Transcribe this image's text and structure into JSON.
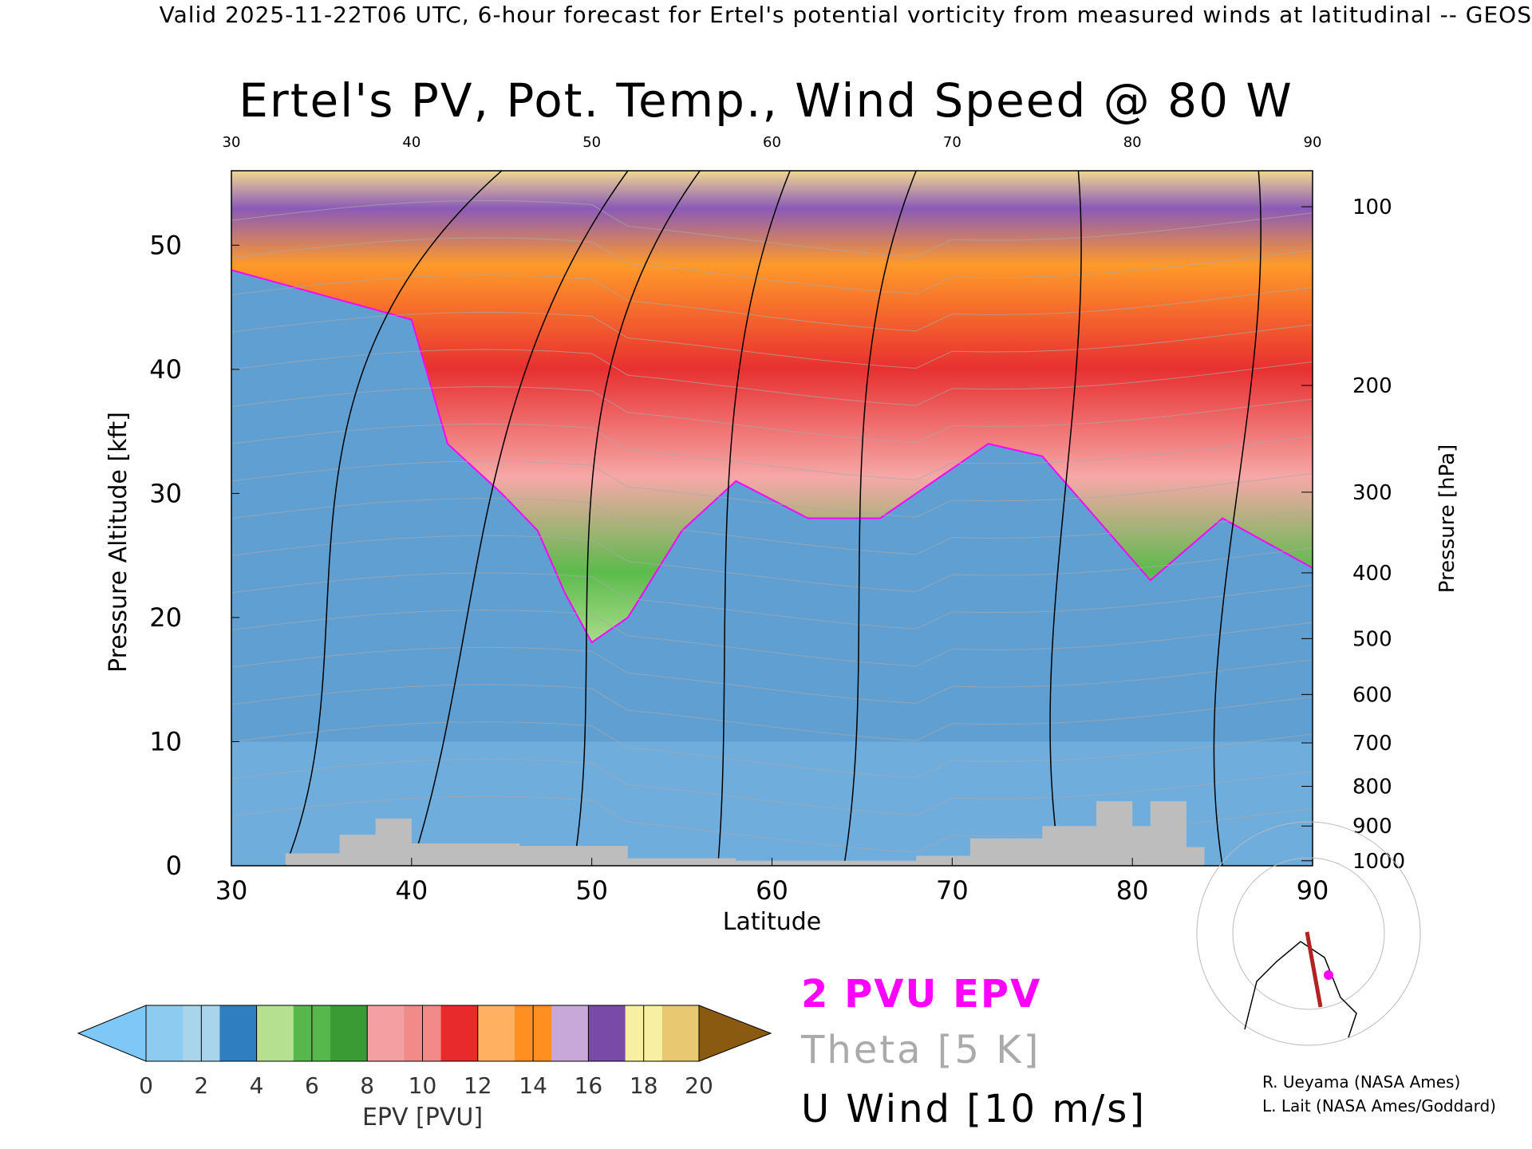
{
  "header": "Valid 2025-11-22T06 UTC, 6-hour forecast for Ertel's potential vorticity from measured winds at latitudinal -- GEOS",
  "chart_data": {
    "type": "heatmap",
    "title": "Ertel's PV, Pot. Temp., Wind Speed @ 80 W",
    "xlabel": "Latitude",
    "ylabel": "Pressure Altitude [kft]",
    "y2label": "Pressure [hPa]",
    "xlim": [
      30,
      90
    ],
    "ylim": [
      0,
      56
    ],
    "xticks": [
      30,
      40,
      50,
      60,
      70,
      80,
      90
    ],
    "yticks": [
      0,
      10,
      20,
      30,
      40,
      50
    ],
    "pressure_ticks": [
      {
        "hPa": 100,
        "kft": 53.1
      },
      {
        "hPa": 200,
        "kft": 38.7
      },
      {
        "hPa": 300,
        "kft": 30.1
      },
      {
        "hPa": 400,
        "kft": 23.6
      },
      {
        "hPa": 500,
        "kft": 18.3
      },
      {
        "hPa": 600,
        "kft": 13.8
      },
      {
        "hPa": 700,
        "kft": 9.9
      },
      {
        "hPa": 800,
        "kft": 6.4
      },
      {
        "hPa": 900,
        "kft": 3.2
      },
      {
        "hPa": 1000,
        "kft": 0.4
      }
    ],
    "colorbar": {
      "label": "EPV [PVU]",
      "ticks": [
        0,
        2,
        4,
        6,
        8,
        10,
        12,
        14,
        16,
        18,
        20
      ],
      "colors": [
        "#8ecbf0",
        "#a8d4ec",
        "#2f7fc0",
        "#b4e090",
        "#56b84a",
        "#3a9b35",
        "#f4a0a0",
        "#f28a8a",
        "#e82a2a",
        "#ffb060",
        "#ff8f20",
        "#c8a8d8",
        "#7a4aa8",
        "#f8f0a0",
        "#e8c870"
      ],
      "under_color": "#7ec8f8",
      "over_color": "#8a5a10"
    },
    "contours": {
      "pv_2pvu": {
        "label": "2 PVU EPV",
        "color": "#ff00ff"
      },
      "theta": {
        "label": "Theta [5 K]",
        "color": "#aaaaaa"
      },
      "u_wind": {
        "label": "U Wind [10 m/s]",
        "color": "#000000"
      }
    },
    "tropopause": [
      {
        "lat": 30,
        "kft": 48
      },
      {
        "lat": 35,
        "kft": 46
      },
      {
        "lat": 40,
        "kft": 44
      },
      {
        "lat": 42,
        "kft": 34
      },
      {
        "lat": 45,
        "kft": 30
      },
      {
        "lat": 47,
        "kft": 27
      },
      {
        "lat": 48.5,
        "kft": 22
      },
      {
        "lat": 50,
        "kft": 18
      },
      {
        "lat": 52,
        "kft": 20
      },
      {
        "lat": 55,
        "kft": 27
      },
      {
        "lat": 58,
        "kft": 31
      },
      {
        "lat": 62,
        "kft": 28
      },
      {
        "lat": 66,
        "kft": 28
      },
      {
        "lat": 69,
        "kft": 31
      },
      {
        "lat": 72,
        "kft": 34
      },
      {
        "lat": 75,
        "kft": 33
      },
      {
        "lat": 78,
        "kft": 28
      },
      {
        "lat": 81,
        "kft": 23
      },
      {
        "lat": 85,
        "kft": 28
      },
      {
        "lat": 90,
        "kft": 24
      }
    ]
  },
  "legend": {
    "pv": "2 PVU EPV",
    "theta": "Theta [5 K]",
    "wind": "U Wind [10 m/s]"
  },
  "credits": {
    "line1": "R. Ueyama (NASA Ames)",
    "line2": "L. Lait (NASA Ames/Goddard)"
  }
}
